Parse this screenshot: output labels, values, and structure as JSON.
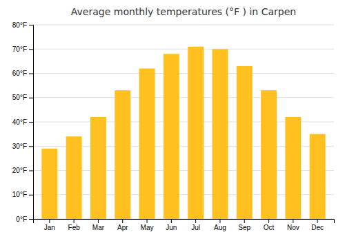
{
  "chart_data": {
    "type": "bar",
    "title": "Average monthly temperatures (°F ) in Carpen",
    "categories": [
      "Jan",
      "Feb",
      "Mar",
      "Apr",
      "May",
      "Jun",
      "Jul",
      "Aug",
      "Sep",
      "Oct",
      "Nov",
      "Dec"
    ],
    "values": [
      29,
      34,
      42,
      53,
      62,
      68,
      71,
      70,
      63,
      53,
      42,
      35
    ],
    "color": "#FFC020",
    "ylim": [
      0,
      80
    ],
    "yticks": [
      {
        "value": 0,
        "label": "0°F"
      },
      {
        "value": 10,
        "label": "10°F"
      },
      {
        "value": 20,
        "label": "20°F"
      },
      {
        "value": 30,
        "label": "30°F"
      },
      {
        "value": 40,
        "label": "40°F"
      },
      {
        "value": 50,
        "label": "50°F"
      },
      {
        "value": 60,
        "label": "60°F"
      },
      {
        "value": 70,
        "label": "70°F"
      },
      {
        "value": 80,
        "label": "80°F"
      }
    ],
    "grid": true
  }
}
